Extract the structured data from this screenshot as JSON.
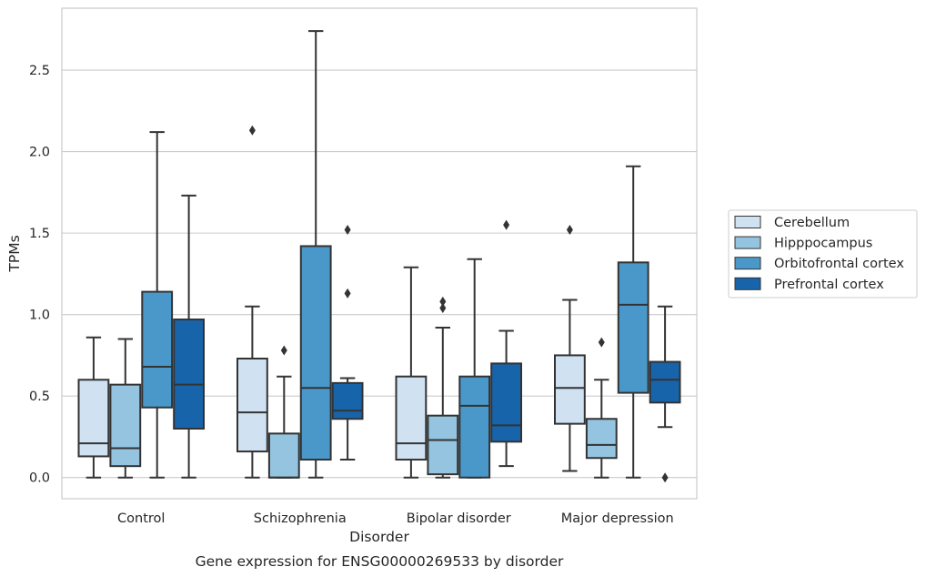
{
  "caption": "Gene expression for ENSG00000269533 by disorder",
  "chart_data": {
    "type": "box",
    "xlabel": "Disorder",
    "ylabel": "TPMs",
    "categories": [
      "Control",
      "Schizophrenia",
      "Bipolar disorder",
      "Major depression"
    ],
    "ylim": [
      -0.13,
      2.88
    ],
    "yticks": [
      0.0,
      0.5,
      1.0,
      1.5,
      2.0,
      2.5
    ],
    "ytick_labels": [
      "0.0",
      "0.5",
      "1.0",
      "1.5",
      "2.0",
      "2.5"
    ],
    "grid": "horizontal",
    "legend_position": "right",
    "series": [
      {
        "name": "Cerebellum",
        "color": "#d0e1f2",
        "boxes": [
          {
            "whislo": 0.0,
            "q1": 0.13,
            "med": 0.21,
            "q3": 0.6,
            "whishi": 0.86,
            "fliers": []
          },
          {
            "whislo": 0.0,
            "q1": 0.16,
            "med": 0.4,
            "q3": 0.73,
            "whishi": 1.05,
            "fliers": [
              2.13
            ]
          },
          {
            "whislo": 0.0,
            "q1": 0.11,
            "med": 0.21,
            "q3": 0.62,
            "whishi": 1.29,
            "fliers": []
          },
          {
            "whislo": 0.04,
            "q1": 0.33,
            "med": 0.55,
            "q3": 0.75,
            "whishi": 1.09,
            "fliers": [
              1.52
            ]
          }
        ]
      },
      {
        "name": "Hipppocampus",
        "color": "#94c4df",
        "boxes": [
          {
            "whislo": 0.0,
            "q1": 0.07,
            "med": 0.18,
            "q3": 0.57,
            "whishi": 0.85,
            "fliers": []
          },
          {
            "whislo": 0.0,
            "q1": 0.0,
            "med": 0.0,
            "q3": 0.27,
            "whishi": 0.62,
            "fliers": [
              0.78
            ]
          },
          {
            "whislo": 0.0,
            "q1": 0.02,
            "med": 0.23,
            "q3": 0.38,
            "whishi": 0.92,
            "fliers": [
              1.04,
              1.08
            ]
          },
          {
            "whislo": 0.0,
            "q1": 0.12,
            "med": 0.2,
            "q3": 0.36,
            "whishi": 0.6,
            "fliers": [
              0.83
            ]
          }
        ]
      },
      {
        "name": "Orbitofrontal cortex",
        "color": "#4a98c9",
        "boxes": [
          {
            "whislo": 0.0,
            "q1": 0.43,
            "med": 0.68,
            "q3": 1.14,
            "whishi": 2.12,
            "fliers": []
          },
          {
            "whislo": 0.0,
            "q1": 0.11,
            "med": 0.55,
            "q3": 1.42,
            "whishi": 2.74,
            "fliers": []
          },
          {
            "whislo": 0.0,
            "q1": 0.0,
            "med": 0.44,
            "q3": 0.62,
            "whishi": 1.34,
            "fliers": []
          },
          {
            "whislo": 0.0,
            "q1": 0.52,
            "med": 1.06,
            "q3": 1.32,
            "whishi": 1.91,
            "fliers": []
          }
        ]
      },
      {
        "name": "Prefrontal cortex",
        "color": "#1764ab",
        "boxes": [
          {
            "whislo": 0.0,
            "q1": 0.3,
            "med": 0.57,
            "q3": 0.97,
            "whishi": 1.73,
            "fliers": []
          },
          {
            "whislo": 0.11,
            "q1": 0.36,
            "med": 0.41,
            "q3": 0.58,
            "whishi": 0.61,
            "fliers": [
              1.13,
              1.52
            ]
          },
          {
            "whislo": 0.07,
            "q1": 0.22,
            "med": 0.32,
            "q3": 0.7,
            "whishi": 0.9,
            "fliers": [
              1.55
            ]
          },
          {
            "whislo": 0.31,
            "q1": 0.46,
            "med": 0.6,
            "q3": 0.71,
            "whishi": 1.05,
            "fliers": [
              0.0
            ]
          }
        ]
      }
    ]
  }
}
